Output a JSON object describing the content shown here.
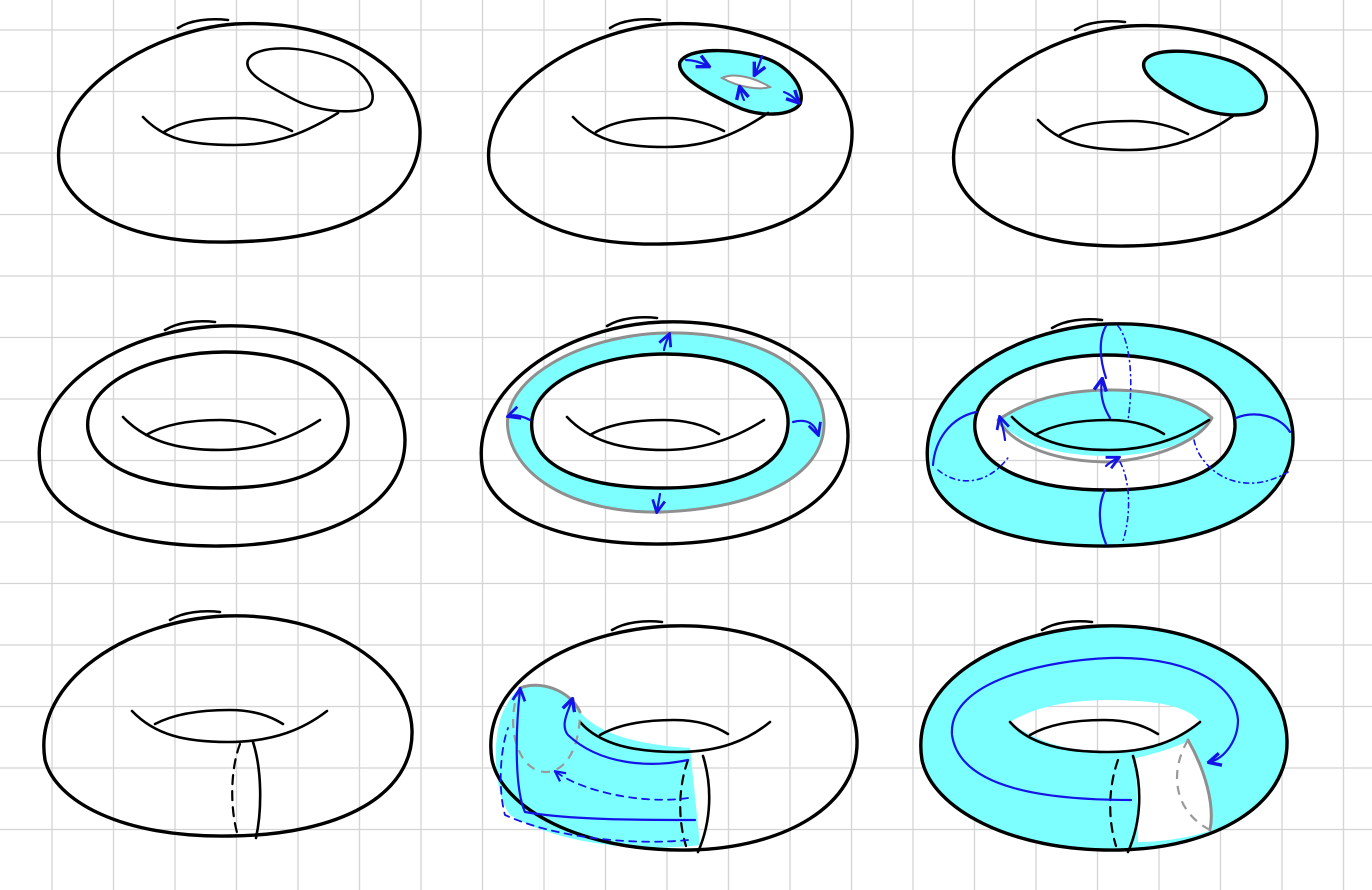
{
  "canvas": {
    "background": "#ffffff",
    "grid_color": "#d4d4d4",
    "ink_color": "#000000",
    "fill_color": "#7dffff",
    "arrow_color": "#1414e6",
    "boundary_color": "#8f8f8f"
  },
  "panels": [
    {
      "row": 1,
      "col": 1,
      "name": "torus-outline",
      "highlight": "none"
    },
    {
      "row": 1,
      "col": 2,
      "name": "torus-disk-shrinking",
      "highlight": "disk-with-arrows"
    },
    {
      "row": 1,
      "col": 3,
      "name": "torus-filled-disk",
      "highlight": "disk"
    },
    {
      "row": 2,
      "col": 1,
      "name": "torus-annulus-outline",
      "highlight": "none"
    },
    {
      "row": 2,
      "col": 2,
      "name": "torus-annulus-arrows",
      "highlight": "annulus-with-arrows"
    },
    {
      "row": 2,
      "col": 3,
      "name": "torus-filled-annulus",
      "highlight": "complement-with-arrows"
    },
    {
      "row": 3,
      "col": 1,
      "name": "torus-meridian-cut",
      "highlight": "none"
    },
    {
      "row": 3,
      "col": 2,
      "name": "torus-cylinder-arrows",
      "highlight": "cylinder-with-arrows"
    },
    {
      "row": 3,
      "col": 3,
      "name": "torus-cylinder-filled",
      "highlight": "cylinder-nearly-full"
    }
  ]
}
